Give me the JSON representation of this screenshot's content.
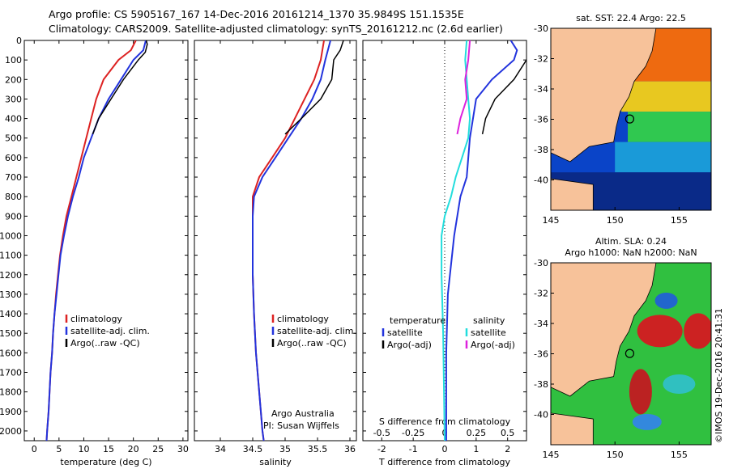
{
  "header": {
    "line1": "Argo profile: CS 5905167_167 14-Dec-2016 20161214_1370 35.9849S 151.1535E",
    "line2": "Climatology: CARS2009. Satellite-adjusted climatology: synTS_20161212.nc (2.6d earlier)"
  },
  "colors": {
    "climatology": "#dd2222",
    "satellite": "#2233dd",
    "argo": "#000000",
    "salinity_sat": "#22dddd",
    "salinity_argo": "#dd22dd",
    "land": "#f7c29a"
  },
  "chart_data": [
    {
      "type": "line",
      "id": "temperature",
      "xlabel": "temperature (deg C)",
      "ylabel": "",
      "xlim": [
        -2,
        31
      ],
      "ylim": [
        2050,
        0
      ],
      "xticks": [
        0,
        5,
        10,
        15,
        20,
        25,
        30
      ],
      "yticks": [
        0,
        100,
        200,
        300,
        400,
        500,
        600,
        700,
        800,
        900,
        1000,
        1100,
        1200,
        1300,
        1400,
        1500,
        1600,
        1700,
        1800,
        1900,
        2000
      ],
      "legend": [
        "climatology",
        "satellite-adj. clim.",
        "Argo(..raw -QC)"
      ],
      "series": [
        {
          "name": "climatology",
          "color": "#dd2222",
          "points": [
            [
              20.5,
              0
            ],
            [
              19.5,
              50
            ],
            [
              17,
              100
            ],
            [
              14,
              200
            ],
            [
              12.5,
              300
            ],
            [
              11.5,
              400
            ],
            [
              10.5,
              500
            ],
            [
              9.5,
              600
            ],
            [
              8.5,
              700
            ],
            [
              7.5,
              800
            ],
            [
              6.5,
              900
            ],
            [
              5.8,
              1000
            ],
            [
              5.2,
              1100
            ],
            [
              4.8,
              1200
            ],
            [
              4.4,
              1300
            ],
            [
              4.1,
              1400
            ],
            [
              3.8,
              1500
            ],
            [
              3.6,
              1600
            ],
            [
              3.3,
              1700
            ],
            [
              3.1,
              1800
            ],
            [
              2.9,
              1900
            ],
            [
              2.6,
              2000
            ],
            [
              2.5,
              2050
            ]
          ]
        },
        {
          "name": "satellite-adj. clim.",
          "color": "#2233dd",
          "points": [
            [
              22.5,
              0
            ],
            [
              22,
              50
            ],
            [
              20,
              100
            ],
            [
              17.5,
              200
            ],
            [
              15,
              300
            ],
            [
              13,
              400
            ],
            [
              11.5,
              500
            ],
            [
              10,
              600
            ],
            [
              9,
              700
            ],
            [
              7.8,
              800
            ],
            [
              6.8,
              900
            ],
            [
              6,
              1000
            ],
            [
              5.3,
              1100
            ],
            [
              4.9,
              1200
            ],
            [
              4.5,
              1300
            ],
            [
              4.1,
              1400
            ],
            [
              3.8,
              1500
            ],
            [
              3.6,
              1600
            ],
            [
              3.3,
              1700
            ],
            [
              3.1,
              1800
            ],
            [
              2.9,
              1900
            ],
            [
              2.6,
              2000
            ],
            [
              2.5,
              2050
            ]
          ]
        },
        {
          "name": "Argo(..raw -QC)",
          "color": "#000000",
          "points": [
            [
              22.6,
              0
            ],
            [
              22.8,
              20
            ],
            [
              22.4,
              60
            ],
            [
              21,
              100
            ],
            [
              18,
              200
            ],
            [
              15.5,
              300
            ],
            [
              13,
              400
            ],
            [
              11.8,
              480
            ]
          ]
        }
      ]
    },
    {
      "type": "line",
      "id": "salinity",
      "xlabel": "salinity",
      "xlim": [
        33.6,
        36.1
      ],
      "ylim": [
        2050,
        0
      ],
      "xticks": [
        34,
        34.5,
        35,
        35.5,
        36
      ],
      "legend": [
        "climatology",
        "satellite-adj. clim.",
        "Argo(..raw -QC)"
      ],
      "notes": [
        "Argo Australia",
        "PI: Susan Wijffels"
      ],
      "series": [
        {
          "name": "climatology",
          "color": "#dd2222",
          "points": [
            [
              35.6,
              0
            ],
            [
              35.55,
              100
            ],
            [
              35.45,
              200
            ],
            [
              35.3,
              300
            ],
            [
              35.15,
              400
            ],
            [
              35,
              500
            ],
            [
              34.8,
              600
            ],
            [
              34.6,
              700
            ],
            [
              34.5,
              800
            ],
            [
              34.5,
              900
            ],
            [
              34.5,
              1000
            ],
            [
              34.5,
              1200
            ],
            [
              34.52,
              1400
            ],
            [
              34.55,
              1600
            ],
            [
              34.6,
              1800
            ],
            [
              34.65,
              2000
            ],
            [
              34.67,
              2050
            ]
          ]
        },
        {
          "name": "satellite-adj. clim.",
          "color": "#2233dd",
          "points": [
            [
              35.7,
              0
            ],
            [
              35.62,
              100
            ],
            [
              35.55,
              200
            ],
            [
              35.42,
              300
            ],
            [
              35.25,
              400
            ],
            [
              35.05,
              500
            ],
            [
              34.85,
              600
            ],
            [
              34.65,
              700
            ],
            [
              34.52,
              800
            ],
            [
              34.5,
              900
            ],
            [
              34.5,
              1000
            ],
            [
              34.5,
              1200
            ],
            [
              34.52,
              1400
            ],
            [
              34.55,
              1600
            ],
            [
              34.6,
              1800
            ],
            [
              34.65,
              2000
            ],
            [
              34.67,
              2050
            ]
          ]
        },
        {
          "name": "Argo(..raw -QC)",
          "color": "#000000",
          "points": [
            [
              35.9,
              0
            ],
            [
              35.85,
              50
            ],
            [
              35.75,
              100
            ],
            [
              35.72,
              200
            ],
            [
              35.55,
              300
            ],
            [
              35.25,
              400
            ],
            [
              35,
              480
            ]
          ]
        }
      ]
    },
    {
      "type": "line",
      "id": "difference",
      "xlabel": "T difference from climatology",
      "xlabel_top": "S difference from climatology",
      "xlim": [
        -2.6,
        2.6
      ],
      "ylim": [
        2050,
        0
      ],
      "xticks_T": [
        -2,
        -1,
        0,
        1,
        2
      ],
      "xticks_S": [
        -0.5,
        -0.25,
        0,
        0.25,
        0.5
      ],
      "legend_temperature_title": "temperature",
      "legend_salinity_title": "salinity",
      "legend_temperature": [
        "satellite",
        "Argo(-adj)"
      ],
      "legend_salinity": [
        "satellite",
        "Argo(-adj)"
      ],
      "series": [
        {
          "name": "temperature satellite",
          "color": "#2233dd",
          "points": [
            [
              2.1,
              0
            ],
            [
              2.3,
              50
            ],
            [
              2.2,
              100
            ],
            [
              1.5,
              200
            ],
            [
              1.0,
              300
            ],
            [
              0.8,
              500
            ],
            [
              0.7,
              700
            ],
            [
              0.5,
              800
            ],
            [
              0.3,
              1000
            ],
            [
              0.1,
              1300
            ],
            [
              0.05,
              1600
            ],
            [
              0.05,
              2050
            ]
          ]
        },
        {
          "name": "temperature Argo(-adj)",
          "color": "#000000",
          "points": [
            [
              2.6,
              0
            ],
            [
              2.7,
              50
            ],
            [
              2.6,
              100
            ],
            [
              2.2,
              200
            ],
            [
              1.6,
              300
            ],
            [
              1.3,
              400
            ],
            [
              1.2,
              480
            ]
          ]
        },
        {
          "name": "salinity satellite",
          "color": "#22dddd",
          "points": [
            [
              0.7,
              0
            ],
            [
              0.65,
              100
            ],
            [
              0.7,
              200
            ],
            [
              0.75,
              300
            ],
            [
              0.8,
              400
            ],
            [
              0.75,
              500
            ],
            [
              0.55,
              600
            ],
            [
              0.35,
              700
            ],
            [
              0.2,
              800
            ],
            [
              0,
              900
            ],
            [
              -0.1,
              1000
            ],
            [
              -0.1,
              1200
            ],
            [
              -0.05,
              1500
            ],
            [
              0,
              2050
            ]
          ]
        },
        {
          "name": "salinity Argo(-adj)",
          "color": "#dd22dd",
          "points": [
            [
              0.8,
              0
            ],
            [
              0.75,
              100
            ],
            [
              0.65,
              200
            ],
            [
              0.7,
              300
            ],
            [
              0.5,
              400
            ],
            [
              0.4,
              480
            ]
          ]
        }
      ]
    },
    {
      "type": "heatmap",
      "id": "sst_map",
      "title": "sat. SST: 22.4  Argo: 22.5",
      "xlim": [
        145,
        157.5
      ],
      "ylim": [
        -42,
        -30
      ],
      "xticks": [
        145,
        150,
        155
      ],
      "yticks": [
        -30,
        -32,
        -34,
        -36,
        -38,
        -40
      ],
      "marker": {
        "lon": 151.15,
        "lat": -35.98
      }
    },
    {
      "type": "heatmap",
      "id": "sla_map",
      "title_lines": [
        "Altim. SLA: 0.24",
        "Argo h1000: NaN h2000: NaN"
      ],
      "xlim": [
        145,
        157.5
      ],
      "ylim": [
        -42,
        -30
      ],
      "xticks": [
        145,
        150,
        155
      ],
      "yticks": [
        -30,
        -32,
        -34,
        -36,
        -38,
        -40
      ],
      "marker": {
        "lon": 151.15,
        "lat": -35.98
      }
    }
  ],
  "stamp": "©IMOS 19-Dec-2016 20:41:31"
}
